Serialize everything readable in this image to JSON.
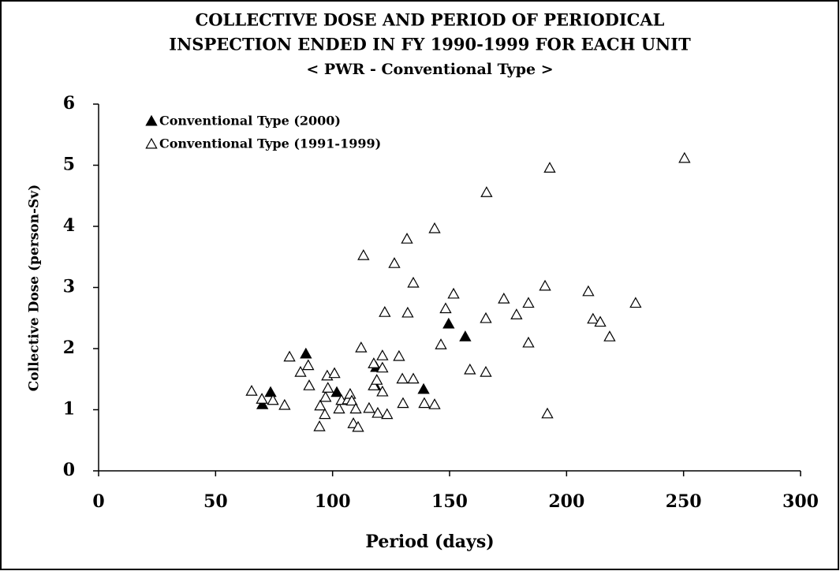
{
  "chart_data": {
    "type": "scatter",
    "title": [
      "COLLECTIVE DOSE AND PERIOD OF PERIODICAL",
      "INSPECTION ENDED IN FY 1990-1999 FOR EACH UNIT",
      "< PWR - Conventional Type >"
    ],
    "x_label": "Period (days)",
    "y_label": "Collective Dose (person-Sv)",
    "xlim": [
      0,
      300
    ],
    "xticks": [
      0,
      50,
      100,
      150,
      200,
      250,
      300
    ],
    "ylim": [
      0,
      6
    ],
    "yticks": [
      0,
      1,
      2,
      3,
      4,
      5,
      6
    ],
    "legend": "upper left",
    "grid": false,
    "series": [
      {
        "name": "Conventional Type (2000)",
        "color": "#000000",
        "filled": true,
        "x": [
          70,
          73.5,
          88.6,
          101.8,
          118.6,
          118.2,
          138.9,
          149.6,
          156.7
        ],
        "values": [
          1.08,
          1.28,
          1.91,
          1.28,
          1.69,
          1.39,
          1.33,
          2.4,
          2.19
        ]
      },
      {
        "name": "Conventional Type (1991-1999)",
        "color": "#000000",
        "filled": false,
        "x": [
          65.4,
          69.8,
          74.5,
          79.5,
          81.6,
          86.3,
          89.6,
          90,
          94.7,
          94.4,
          96.7,
          97,
          97.7,
          98,
          100.8,
          102.8,
          103.8,
          106.5,
          107.5,
          108.2,
          108.9,
          109.9,
          110.9,
          112.2,
          113.2,
          115.6,
          117.6,
          117.6,
          118.9,
          119.3,
          121.3,
          121.3,
          121.3,
          122.3,
          123.3,
          126.4,
          128.4,
          129.8,
          130.1,
          131.8,
          132.1,
          134.5,
          134.5,
          139.2,
          143.6,
          143.6,
          146.3,
          148.3,
          151.7,
          158.7,
          165.5,
          165.5,
          165.8,
          173.2,
          178.6,
          183.7,
          183.7,
          190.8,
          191.8,
          192.8,
          209.3,
          211.3,
          214.4,
          218.4,
          229.5,
          250.4
        ],
        "values": [
          1.3,
          1.17,
          1.15,
          1.07,
          1.86,
          1.61,
          1.72,
          1.39,
          1.06,
          0.72,
          0.92,
          1.2,
          1.55,
          1.35,
          1.59,
          1.01,
          1.15,
          1.16,
          1.25,
          1.14,
          0.77,
          1.01,
          0.71,
          2.01,
          3.52,
          1.02,
          1.75,
          1.39,
          1.48,
          0.94,
          1.88,
          1.68,
          1.29,
          2.59,
          0.92,
          3.39,
          1.87,
          1.5,
          1.1,
          3.79,
          2.58,
          3.07,
          1.5,
          1.1,
          3.96,
          1.08,
          2.06,
          2.65,
          2.89,
          1.65,
          2.49,
          1.61,
          4.55,
          2.81,
          2.55,
          2.74,
          2.09,
          3.02,
          0.93,
          4.95,
          2.93,
          2.48,
          2.43,
          2.19,
          2.74,
          5.11
        ]
      }
    ]
  }
}
